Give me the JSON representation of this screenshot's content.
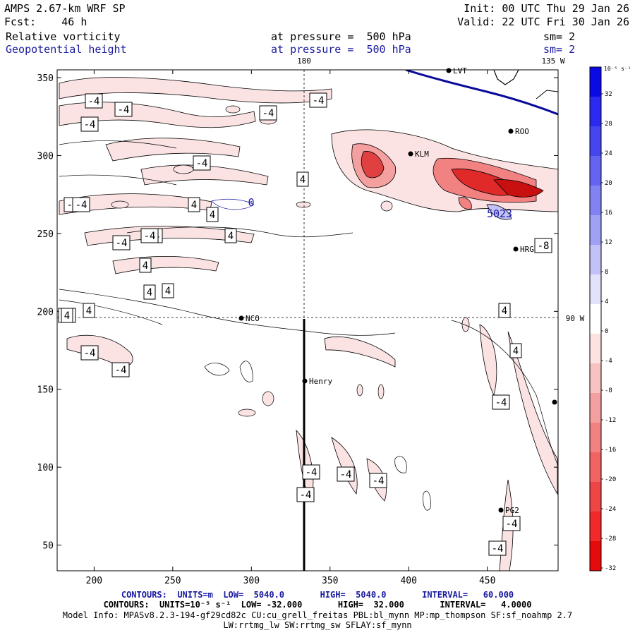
{
  "header": {
    "model": "AMPS 2.67-km WRF SP",
    "fcst": "Fcst:    46 h",
    "init": "Init: 00 UTC Thu 29 Jan 26",
    "valid": "Valid: 22 UTC Fri 30 Jan 26",
    "field1_name": "Relative vorticity",
    "field1_level": "at pressure =  500 hPa",
    "field1_sm": "sm= 2",
    "field2_name": "Geopotential height",
    "field2_level": "at pressure =  500 hPa",
    "field2_sm": "sm= 2"
  },
  "map": {
    "x_ticks": [
      "200",
      "250",
      "300",
      "350",
      "400",
      "450"
    ],
    "y_ticks": [
      "50",
      "100",
      "150",
      "200",
      "250",
      "300",
      "350"
    ],
    "meridian_180": "180",
    "meridian_135w": "135 W",
    "meridian_90w": "90 W",
    "stations": [
      "NCO",
      "Henry",
      "KLM",
      "ROO",
      "HRG",
      "PG2",
      "LVT"
    ],
    "contour_labels": [
      "-4",
      "-4",
      "-4",
      "-4",
      "-4",
      "-4",
      "-4",
      "-4",
      "-4",
      "-4",
      "-4",
      "-4",
      "-4",
      "-4",
      "-4",
      "-4",
      "-4",
      "-4",
      "-4",
      "-4",
      "-4",
      "-8",
      "4",
      "4",
      "4",
      "4",
      "4",
      "4",
      "4",
      "4",
      "4",
      "4",
      "4"
    ],
    "height_labels": [
      "5023",
      "0"
    ]
  },
  "colorbar": {
    "units": "10⁻⁵ s⁻¹",
    "labels": [
      "32",
      "28",
      "24",
      "20",
      "16",
      "12",
      "8",
      "4",
      "0",
      "-4",
      "-8",
      "-12",
      "-16",
      "-20",
      "-24",
      "-28",
      "-32"
    ],
    "colors": [
      "#0a0ae6",
      "#2a2af0",
      "#4646ee",
      "#6464f0",
      "#8282f2",
      "#a0a0f5",
      "#c2c2f8",
      "#e2e2fb",
      "#ffffff",
      "#fde2e2",
      "#f8c2c2",
      "#f5a0a0",
      "#f28282",
      "#f06464",
      "#ee4646",
      "#f02a2a",
      "#e60a0a"
    ]
  },
  "footer": {
    "line1": "CONTOURS:  UNITS=m  LOW=  5040.0       HIGH=  5040.0       INTERVAL=   60.000",
    "line2": "CONTOURS:  UNITS=10⁻⁵ s⁻¹  LOW= -32.000       HIGH=  32.000       INTERVAL=   4.0000",
    "line3": "Model Info: MPASv8.2.3-194-gf29cd82c CU:cu_grell_freitas PBL:bl_mynn MP:mp_thompson SF:sf_noahmp 2.7",
    "line4": "LW:rrtmg_lw SW:rrtmg_sw SFLAY:sf_mynn"
  }
}
